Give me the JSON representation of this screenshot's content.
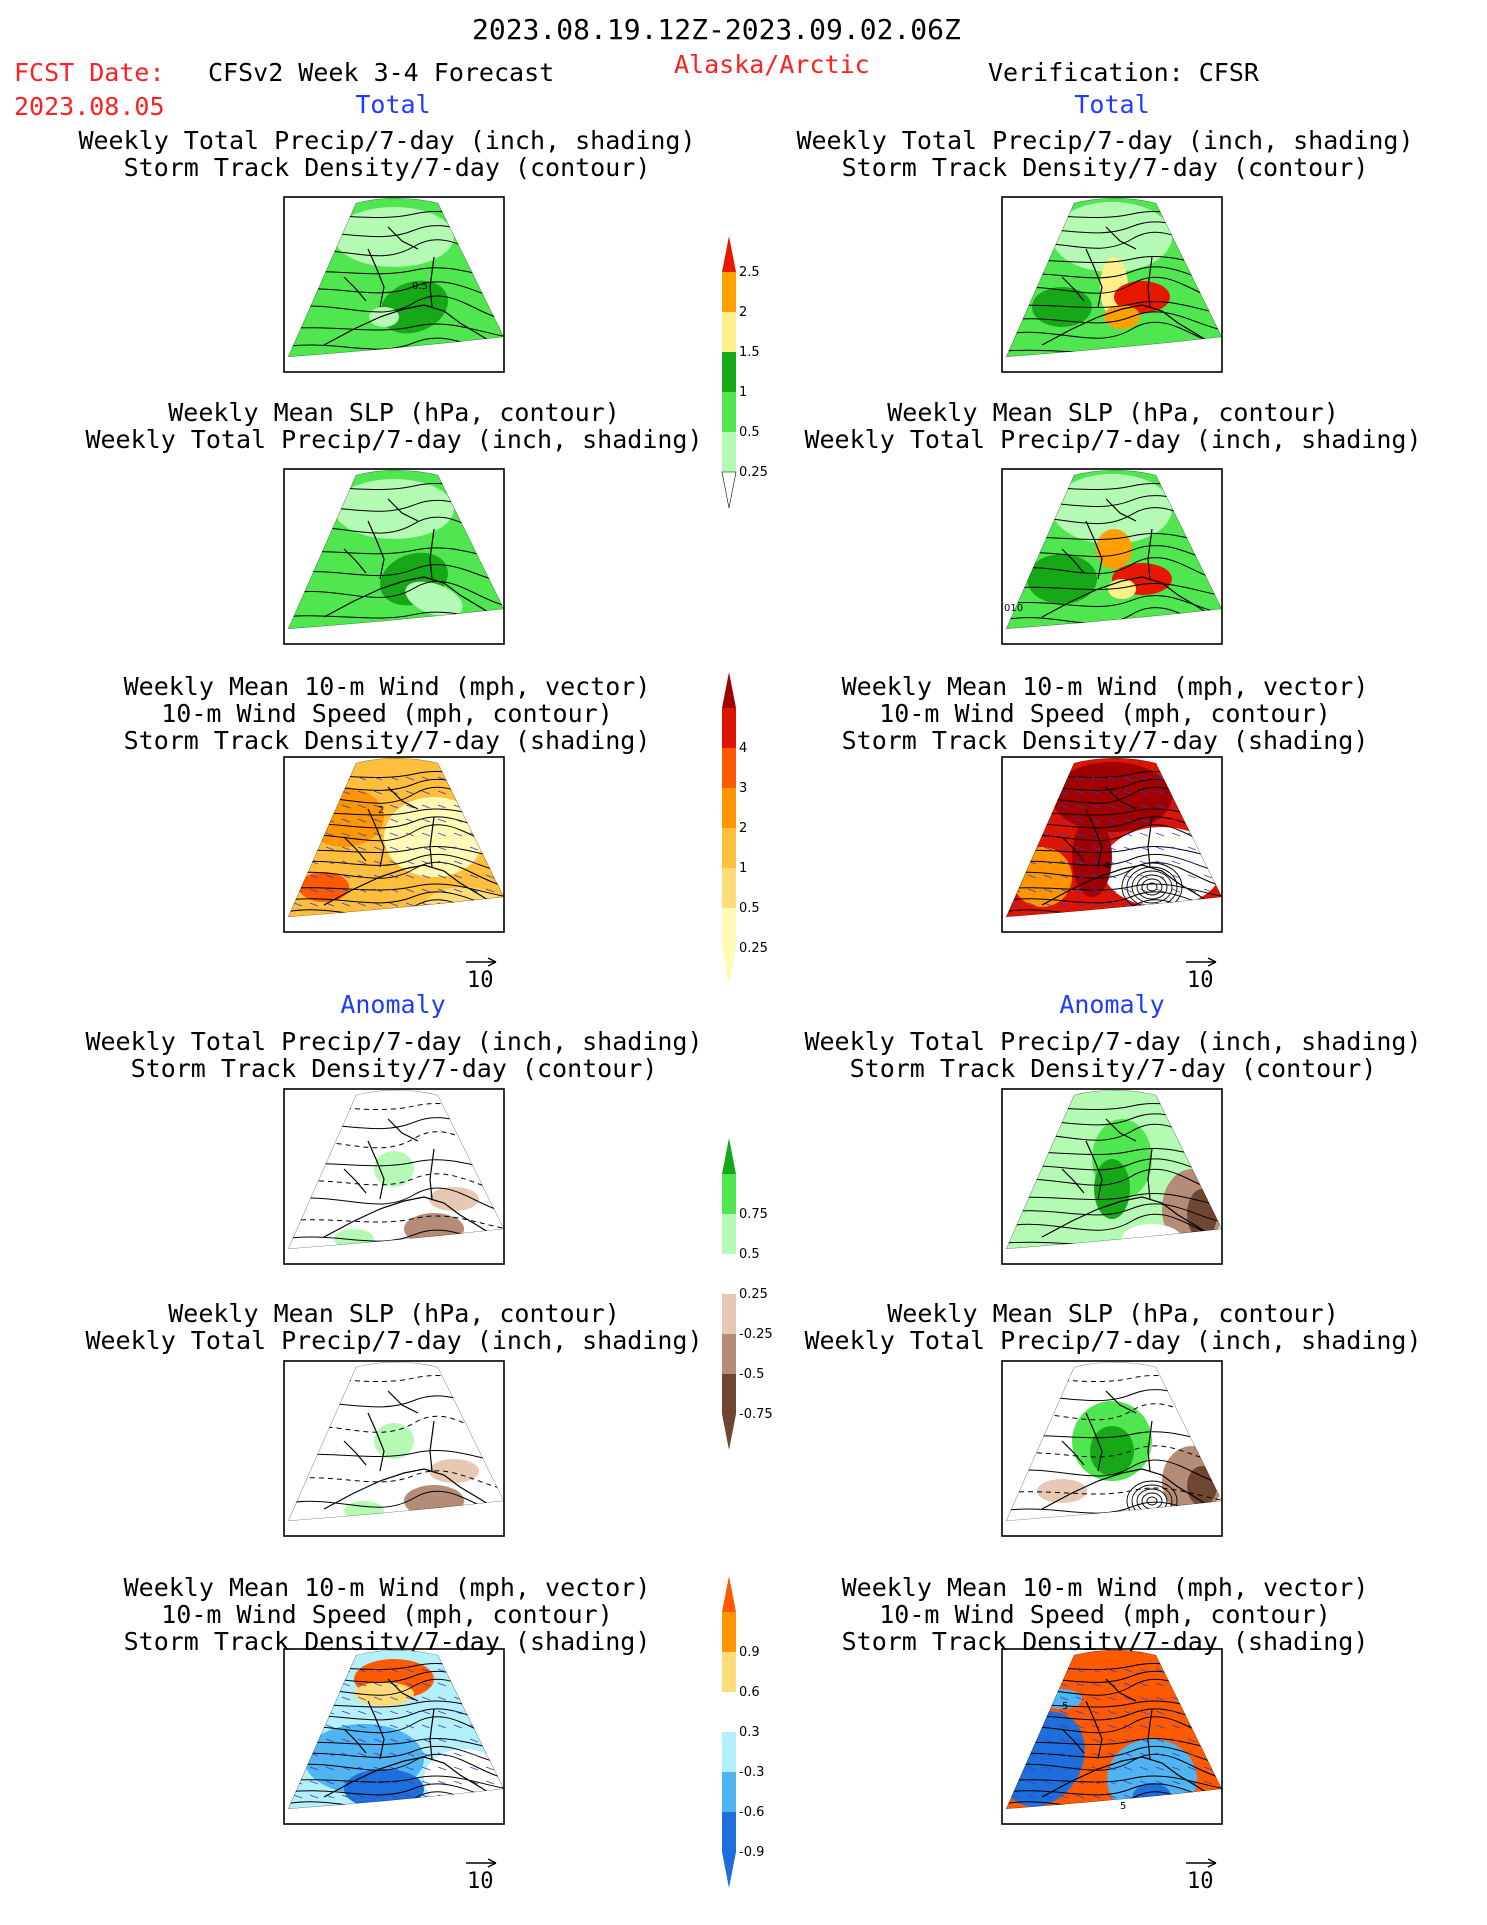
{
  "header": {
    "valid_period": "2023.08.19.12Z-2023.09.02.06Z",
    "fcst_date_label": "FCST Date:",
    "fcst_date_value": "2023.08.05",
    "model_title": "CFSv2 Week 3-4 Forecast",
    "region": "Alaska/Arctic",
    "verification": "Verification: CFSR"
  },
  "sections": {
    "total": "Total",
    "anomaly": "Anomaly"
  },
  "captions": {
    "precip_storm": [
      "Weekly Total Precip/7-day (inch, shading)",
      "Storm Track Density/7-day (contour)"
    ],
    "slp_precip": [
      "Weekly Mean SLP (hPa, contour)",
      "Weekly Total Precip/7-day (inch, shading)"
    ],
    "wind": [
      "Weekly Mean 10-m Wind (mph, vector)",
      "10-m Wind Speed (mph, contour)",
      "Storm Track Density/7-day (shading)"
    ]
  },
  "vector_reference": "10",
  "contour_labels": {
    "fc_precip_storm": "0.5",
    "obs_slp_precip": "010",
    "fc_wind": "2",
    "obs_wind": "4",
    "obs_wind_anom_a": "5",
    "obs_wind_anom_b": "5"
  },
  "colors": {
    "title_red": "#ff2020",
    "section_blue": "#1e3cff",
    "precip_green_light": "#b4fab4",
    "precip_green_mid": "#50e650",
    "precip_green_dark": "#16a816",
    "precip_yellow": "#fff08c",
    "precip_orange": "#ffa000",
    "precip_red": "#e81800",
    "storm_yellow_light": "#fffab4",
    "storm_yellow": "#ffdc78",
    "storm_orange_light": "#ffbe3c",
    "storm_orange": "#ff9600",
    "storm_red_orange": "#ff5a00",
    "storm_red": "#dc1400",
    "storm_dark_red": "#a00000",
    "brown_light": "#e6c8b4",
    "brown_mid": "#b48c78",
    "brown_dark": "#6e4632",
    "blue_light": "#b4f0fa",
    "blue_mid": "#50b4f0",
    "blue_dark": "#1e6edc"
  },
  "chart_data": [
    {
      "type": "heatmap",
      "name": "colorbar-precip-total",
      "levels": [
        0.25,
        0.5,
        1,
        1.5,
        2,
        2.5
      ],
      "tick_labels": [
        "0.25",
        "0.5",
        "1",
        "1.5",
        "2",
        "2.5"
      ],
      "colors": [
        "#b4fab4",
        "#50e650",
        "#16a816",
        "#fff08c",
        "#ffa000",
        "#e81800"
      ]
    },
    {
      "type": "heatmap",
      "name": "colorbar-storm-total",
      "levels": [
        0.25,
        0.5,
        1,
        2,
        3,
        4
      ],
      "tick_labels": [
        "0.25",
        "0.5",
        "1",
        "2",
        "3",
        "4"
      ],
      "colors": [
        "#fffab4",
        "#ffdc78",
        "#ffbe3c",
        "#ff9600",
        "#ff5a00",
        "#dc1400",
        "#a00000"
      ]
    },
    {
      "type": "heatmap",
      "name": "colorbar-precip-anomaly",
      "levels": [
        -0.75,
        -0.5,
        -0.25,
        0.25,
        0.5,
        0.75
      ],
      "tick_labels": [
        "-0.75",
        "-0.5",
        "-0.25",
        "0.25",
        "0.5",
        "0.75"
      ],
      "colors": [
        "#6e4632",
        "#b48c78",
        "#e6c8b4",
        "#ffffff",
        "#b4fab4",
        "#50e650",
        "#16a816"
      ]
    },
    {
      "type": "heatmap",
      "name": "colorbar-storm-anomaly",
      "levels": [
        -0.9,
        -0.6,
        -0.3,
        0.3,
        0.6,
        0.9
      ],
      "tick_labels": [
        "-0.9",
        "-0.6",
        "-0.3",
        "0.3",
        "0.6",
        "0.9"
      ],
      "colors": [
        "#1e6edc",
        "#50b4f0",
        "#b4f0fa",
        "#ffffff",
        "#ffdc78",
        "#ff9600",
        "#ff5a00"
      ]
    }
  ]
}
